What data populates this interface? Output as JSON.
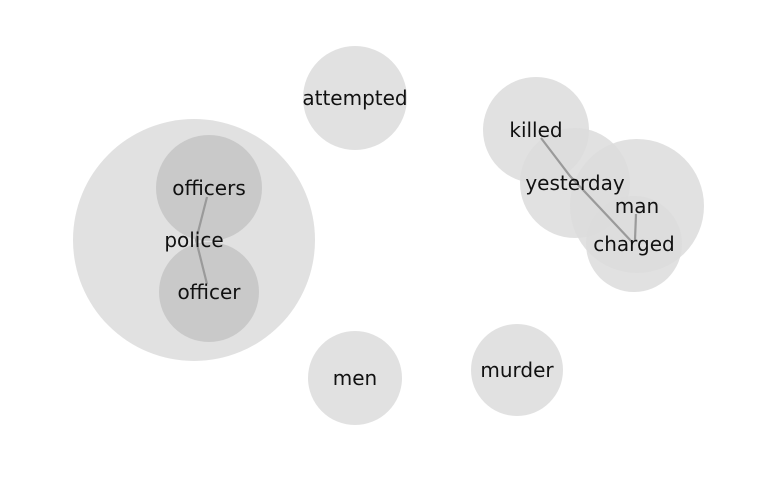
{
  "diagram": {
    "words": {
      "police": "police",
      "officers": "officers",
      "officer": "officer",
      "attempted": "attempted",
      "killed": "killed",
      "yesterday": "yesterday",
      "man": "man",
      "charged": "charged",
      "men": "men",
      "murder": "murder"
    },
    "colors": {
      "bubble": "#dcdcdc",
      "inner_bubble": "#c6c6c6",
      "link": "#9a9a9a",
      "text": "#111111"
    }
  }
}
